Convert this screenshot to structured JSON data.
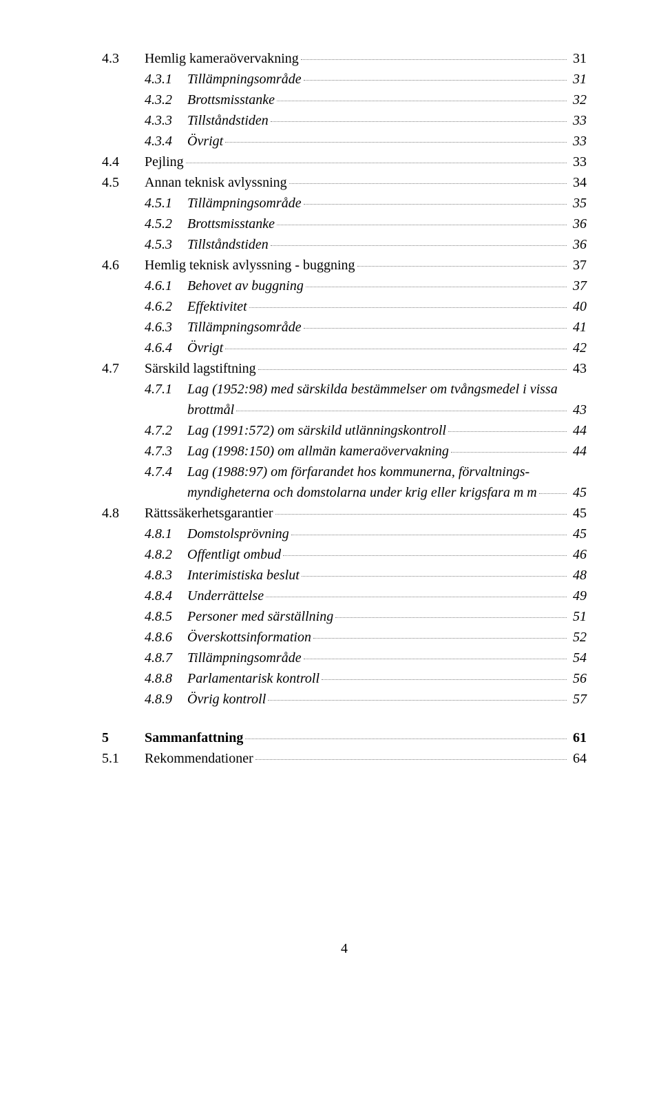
{
  "typography": {
    "font_family": "Times New Roman",
    "base_fontsize_pt": 15,
    "colors": {
      "text": "#000000",
      "background": "#ffffff",
      "leader": "#808080"
    }
  },
  "entries": [
    {
      "lvl": 2,
      "num": "4.3",
      "title": "Hemlig kameraövervakning",
      "page": "31",
      "style": "plain"
    },
    {
      "lvl": 3,
      "num": "4.3.1",
      "title": "Tillämpningsområde",
      "page": "31",
      "style": "italic"
    },
    {
      "lvl": 3,
      "num": "4.3.2",
      "title": "Brottsmisstanke",
      "page": "32",
      "style": "italic"
    },
    {
      "lvl": 3,
      "num": "4.3.3",
      "title": "Tillståndstiden",
      "page": "33",
      "style": "italic"
    },
    {
      "lvl": 3,
      "num": "4.3.4",
      "title": "Övrigt",
      "page": "33",
      "style": "italic"
    },
    {
      "lvl": 2,
      "num": "4.4",
      "title": "Pejling",
      "page": "33",
      "style": "plain"
    },
    {
      "lvl": 2,
      "num": "4.5",
      "title": "Annan teknisk avlyssning",
      "page": "34",
      "style": "plain"
    },
    {
      "lvl": 3,
      "num": "4.5.1",
      "title": "Tillämpningsområde",
      "page": "35",
      "style": "italic"
    },
    {
      "lvl": 3,
      "num": "4.5.2",
      "title": "Brottsmisstanke",
      "page": "36",
      "style": "italic"
    },
    {
      "lvl": 3,
      "num": "4.5.3",
      "title": "Tillståndstiden",
      "page": "36",
      "style": "italic"
    },
    {
      "lvl": 2,
      "num": "4.6",
      "title": "Hemlig teknisk avlyssning - buggning",
      "page": "37",
      "style": "plain"
    },
    {
      "lvl": 3,
      "num": "4.6.1",
      "title": "Behovet av buggning",
      "page": "37",
      "style": "italic"
    },
    {
      "lvl": 3,
      "num": "4.6.2",
      "title": "Effektivitet",
      "page": "40",
      "style": "italic"
    },
    {
      "lvl": 3,
      "num": "4.6.3",
      "title": "Tillämpningsområde",
      "page": "41",
      "style": "italic"
    },
    {
      "lvl": 3,
      "num": "4.6.4",
      "title": "Övrigt",
      "page": "42",
      "style": "italic"
    },
    {
      "lvl": 2,
      "num": "4.7",
      "title": "Särskild lagstiftning",
      "page": "43",
      "style": "plain"
    },
    {
      "lvl": 3,
      "num": "4.7.1",
      "title_l1": "Lag (1952:98) med särskilda bestämmelser om tvångsmedel i vissa",
      "title_l2": "brottmål",
      "page": "43",
      "style": "italic",
      "wrap": true
    },
    {
      "lvl": 3,
      "num": "4.7.2",
      "title": "Lag (1991:572) om särskild utlänningskontroll",
      "page": "44",
      "style": "italic"
    },
    {
      "lvl": 3,
      "num": "4.7.3",
      "title": "Lag (1998:150) om allmän kameraövervakning",
      "page": "44",
      "style": "italic"
    },
    {
      "lvl": 3,
      "num": "4.7.4",
      "title_l1": "Lag (1988:97) om förfarandet hos kommunerna, förvaltnings-",
      "title_l2": "myndigheterna och domstolarna under krig eller krigsfara m m",
      "page": "45",
      "style": "italic",
      "wrap": true
    },
    {
      "lvl": 2,
      "num": "4.8",
      "title": "Rättssäkerhetsgarantier",
      "page": "45",
      "style": "plain"
    },
    {
      "lvl": 3,
      "num": "4.8.1",
      "title": "Domstolsprövning",
      "page": "45",
      "style": "italic"
    },
    {
      "lvl": 3,
      "num": "4.8.2",
      "title": "Offentligt ombud",
      "page": "46",
      "style": "italic"
    },
    {
      "lvl": 3,
      "num": "4.8.3",
      "title": "Interimistiska beslut",
      "page": "48",
      "style": "italic"
    },
    {
      "lvl": 3,
      "num": "4.8.4",
      "title": "Underrättelse",
      "page": "49",
      "style": "italic"
    },
    {
      "lvl": 3,
      "num": "4.8.5",
      "title": "Personer med särställning",
      "page": "51",
      "style": "italic"
    },
    {
      "lvl": 3,
      "num": "4.8.6",
      "title": "Överskottsinformation",
      "page": "52",
      "style": "italic"
    },
    {
      "lvl": 3,
      "num": "4.8.7",
      "title": "Tillämpningsområde",
      "page": "54",
      "style": "italic"
    },
    {
      "lvl": 3,
      "num": "4.8.8",
      "title": "Parlamentarisk kontroll",
      "page": "56",
      "style": "italic"
    },
    {
      "lvl": 3,
      "num": "4.8.9",
      "title": "Övrig kontroll",
      "page": "57",
      "style": "italic"
    },
    {
      "spacer": "mid"
    },
    {
      "lvl": 1,
      "num": "5",
      "title": "Sammanfattning",
      "page": "61",
      "style": "bold"
    },
    {
      "lvl": 2,
      "num": "5.1",
      "title": "Rekommendationer",
      "page": "64",
      "style": "plain"
    }
  ],
  "page_number": "4"
}
